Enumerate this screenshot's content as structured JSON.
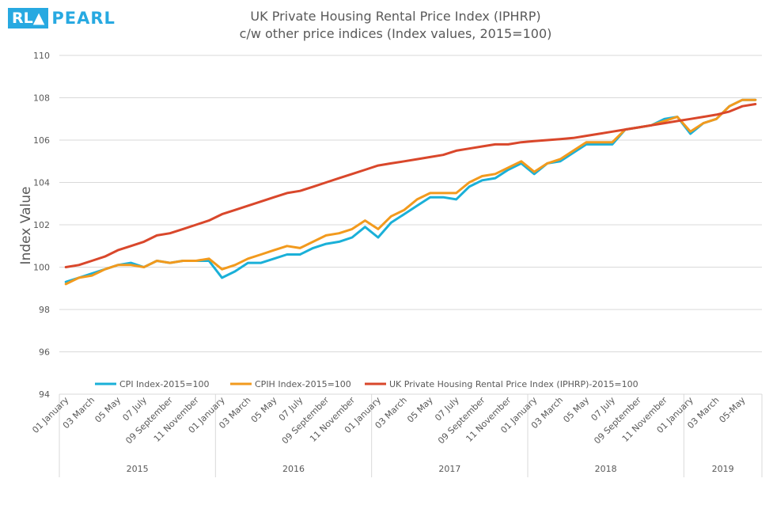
{
  "logo": {
    "badge": "RL▲",
    "text": "PEARL"
  },
  "chart_data": {
    "type": "line",
    "title": "UK Private Housing Rental Price Index (IPHRP)",
    "subtitle": "c/w other price indices (Index values, 2015=100)",
    "ylabel": "Index Value",
    "xlabel": "",
    "ylim": [
      94,
      110
    ],
    "yticks": [
      94,
      96,
      98,
      100,
      102,
      104,
      106,
      108,
      110
    ],
    "grid": true,
    "legend_position": "bottom",
    "x_tick_labels": [
      {
        "index": 0,
        "label": "01 January"
      },
      {
        "index": 2,
        "label": "03 March"
      },
      {
        "index": 4,
        "label": "05 May"
      },
      {
        "index": 6,
        "label": "07 July"
      },
      {
        "index": 8,
        "label": "09 September"
      },
      {
        "index": 10,
        "label": "11 November"
      },
      {
        "index": 12,
        "label": "01 January"
      },
      {
        "index": 14,
        "label": "03 March"
      },
      {
        "index": 16,
        "label": "05 May"
      },
      {
        "index": 18,
        "label": "07 July"
      },
      {
        "index": 20,
        "label": "09 September"
      },
      {
        "index": 22,
        "label": "11 November"
      },
      {
        "index": 24,
        "label": "01 January"
      },
      {
        "index": 26,
        "label": "03 March"
      },
      {
        "index": 28,
        "label": "05 May"
      },
      {
        "index": 30,
        "label": "07 July"
      },
      {
        "index": 32,
        "label": "09 September"
      },
      {
        "index": 34,
        "label": "11 November"
      },
      {
        "index": 36,
        "label": "01 January"
      },
      {
        "index": 38,
        "label": "03 March"
      },
      {
        "index": 40,
        "label": "05 May"
      },
      {
        "index": 42,
        "label": "07 July"
      },
      {
        "index": 44,
        "label": "09 September"
      },
      {
        "index": 46,
        "label": "11 November"
      },
      {
        "index": 48,
        "label": "01 January"
      },
      {
        "index": 50,
        "label": "03 March"
      },
      {
        "index": 52,
        "label": "05-May"
      }
    ],
    "years": [
      {
        "label": "2015",
        "start": 0,
        "count": 12
      },
      {
        "label": "2016",
        "start": 12,
        "count": 12
      },
      {
        "label": "2017",
        "start": 24,
        "count": 12
      },
      {
        "label": "2018",
        "start": 36,
        "count": 12
      },
      {
        "label": "2019",
        "start": 48,
        "count": 6
      }
    ],
    "series": [
      {
        "name": "CPI Index-2015=100",
        "color": "#1ab0d8",
        "values": [
          99.3,
          99.5,
          99.7,
          99.9,
          100.1,
          100.2,
          100.0,
          100.3,
          100.2,
          100.3,
          100.3,
          100.3,
          99.5,
          99.8,
          100.2,
          100.2,
          100.4,
          100.6,
          100.6,
          100.9,
          101.1,
          101.2,
          101.4,
          101.9,
          101.4,
          102.1,
          102.5,
          102.9,
          103.3,
          103.3,
          103.2,
          103.8,
          104.1,
          104.2,
          104.6,
          104.9,
          104.4,
          104.9,
          105.0,
          105.4,
          105.8,
          105.8,
          105.8,
          106.5,
          106.6,
          106.7,
          107.0,
          107.1,
          106.3,
          106.8,
          107.0,
          107.6,
          107.9,
          107.9
        ]
      },
      {
        "name": "CPIH Index-2015=100",
        "color": "#f29a1d",
        "values": [
          99.2,
          99.5,
          99.6,
          99.9,
          100.1,
          100.1,
          100.0,
          100.3,
          100.2,
          100.3,
          100.3,
          100.4,
          99.9,
          100.1,
          100.4,
          100.6,
          100.8,
          101.0,
          100.9,
          101.2,
          101.5,
          101.6,
          101.8,
          102.2,
          101.8,
          102.4,
          102.7,
          103.2,
          103.5,
          103.5,
          103.5,
          104.0,
          104.3,
          104.4,
          104.7,
          105.0,
          104.5,
          104.9,
          105.1,
          105.5,
          105.9,
          105.9,
          105.9,
          106.5,
          106.6,
          106.7,
          106.9,
          107.1,
          106.4,
          106.8,
          107.0,
          107.6,
          107.9,
          107.9
        ]
      },
      {
        "name": "UK Private Housing Rental Price Index (IPHRP)-2015=100",
        "color": "#d9472b",
        "values": [
          100.0,
          100.1,
          100.3,
          100.5,
          100.8,
          101.0,
          101.2,
          101.5,
          101.6,
          101.8,
          102.0,
          102.2,
          102.5,
          102.7,
          102.9,
          103.1,
          103.3,
          103.5,
          103.6,
          103.8,
          104.0,
          104.2,
          104.4,
          104.6,
          104.8,
          104.9,
          105.0,
          105.1,
          105.2,
          105.3,
          105.5,
          105.6,
          105.7,
          105.8,
          105.8,
          105.9,
          105.95,
          106.0,
          106.05,
          106.1,
          106.2,
          106.3,
          106.4,
          106.5,
          106.6,
          106.7,
          106.8,
          106.9,
          107.0,
          107.1,
          107.2,
          107.35,
          107.6,
          107.7
        ]
      }
    ]
  }
}
